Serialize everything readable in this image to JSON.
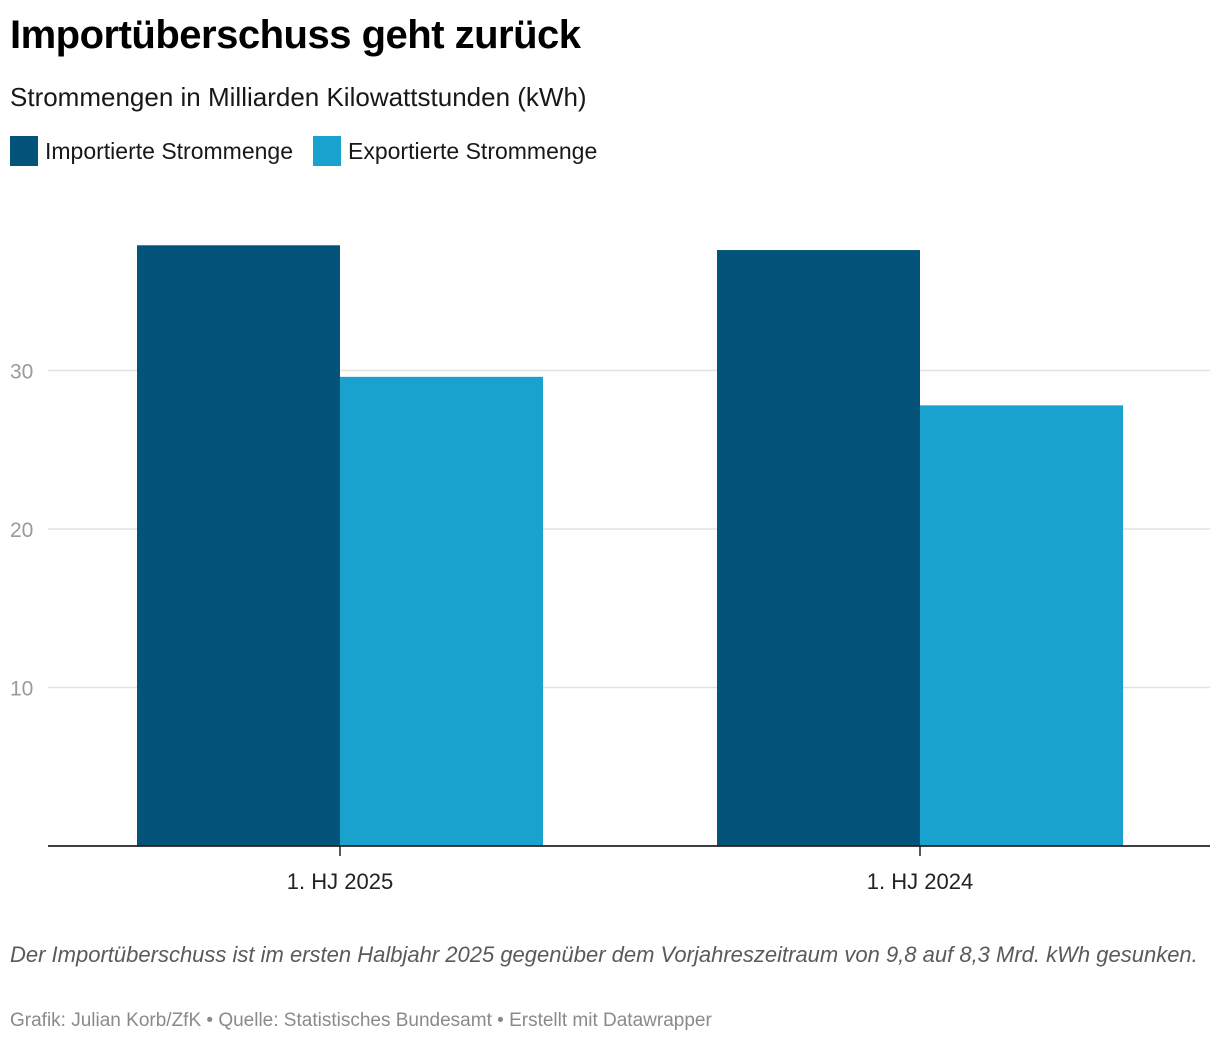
{
  "header": {
    "title": "Importüberschuss geht zurück",
    "subtitle": "Strommengen in Milliarden Kilowattstunden (kWh)"
  },
  "legend": [
    {
      "label": "Importierte Strommenge",
      "color": "#04537a"
    },
    {
      "label": "Exportierte Strommenge",
      "color": "#1aa2cf"
    }
  ],
  "chart_data": {
    "type": "bar",
    "title": "Importüberschuss geht zurück",
    "subtitle": "Strommengen in Milliarden Kilowattstunden (kWh)",
    "categories": [
      "1. HJ 2025",
      "1. HJ 2024"
    ],
    "series": [
      {
        "name": "Importierte Strommenge",
        "values": [
          37.9,
          37.6
        ],
        "color": "#04537a"
      },
      {
        "name": "Exportierte Strommenge",
        "values": [
          29.6,
          27.8
        ],
        "color": "#1aa2cf"
      }
    ],
    "yticks": [
      10,
      20,
      30
    ],
    "ylim": [
      0,
      40
    ],
    "xlabel": "",
    "ylabel": "",
    "grid": true,
    "legend": "top-left"
  },
  "note": "Der Importüberschuss ist im ersten Halbjahr 2025 gegenüber dem Vorjahreszeitraum von 9,8 auf 8,3 Mrd. kWh gesunken.",
  "footer": "Grafik: Julian Korb/ZfK • Quelle: Statistisches Bundesamt • Erstellt mit Datawrapper"
}
